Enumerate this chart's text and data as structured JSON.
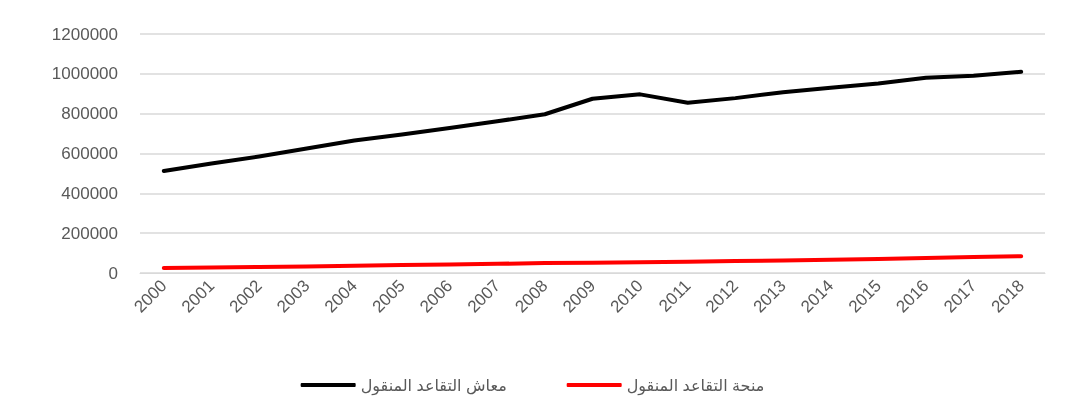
{
  "chart_data": {
    "type": "line",
    "categories": [
      "2000",
      "2001",
      "2002",
      "2003",
      "2004",
      "2005",
      "2006",
      "2007",
      "2008",
      "2009",
      "2010",
      "2011",
      "2012",
      "2013",
      "2014",
      "2015",
      "2016",
      "2017",
      "2018"
    ],
    "series": [
      {
        "name": "معاش التقاعد المنقول",
        "color": "#000000",
        "values": [
          512000,
          550000,
          585000,
          625000,
          665000,
          695000,
          728000,
          762000,
          797000,
          875000,
          897000,
          855000,
          878000,
          908000,
          930000,
          952000,
          980000,
          990000,
          1010000
        ]
      },
      {
        "name": "منحة التقاعد المنقول",
        "color": "#ff0000",
        "values": [
          25000,
          28000,
          30000,
          33000,
          37000,
          40000,
          43000,
          46000,
          50000,
          52000,
          54000,
          57000,
          60000,
          63000,
          66000,
          70000,
          75000,
          80000,
          84000
        ]
      }
    ],
    "ylim": [
      0,
      1200000
    ],
    "yticks": [
      0,
      200000,
      400000,
      600000,
      800000,
      1000000,
      1200000
    ],
    "grid": "y",
    "legend": "bottom",
    "marker": "none",
    "line_style": "solid"
  }
}
